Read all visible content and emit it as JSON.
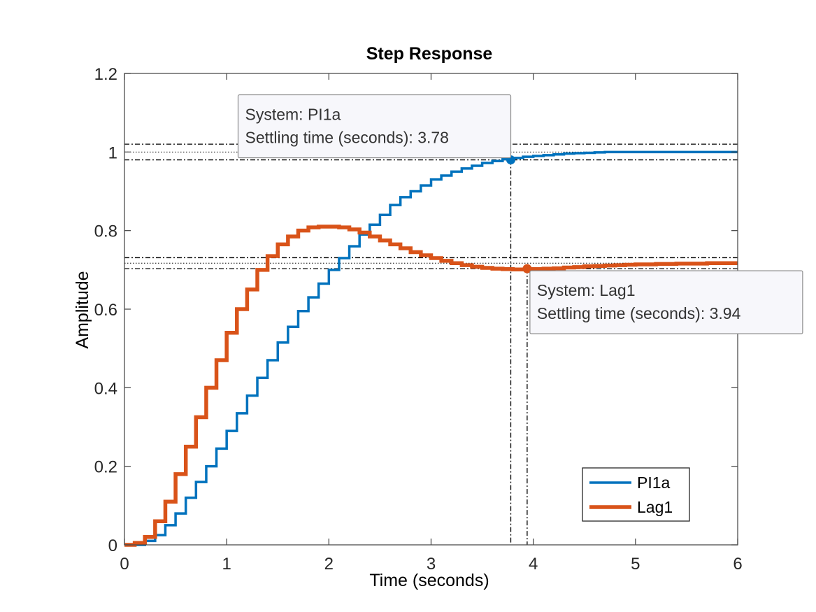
{
  "chart_data": {
    "type": "line",
    "title": "Step Response",
    "xlabel": "Time (seconds)",
    "ylabel": "Amplitude",
    "xlim": [
      0,
      6
    ],
    "ylim": [
      0,
      1.2
    ],
    "xticks": [
      0,
      1,
      2,
      3,
      4,
      5,
      6
    ],
    "xtick_labels": [
      "0",
      "1",
      "2",
      "3",
      "4",
      "5",
      "6"
    ],
    "yticks": [
      0,
      0.2,
      0.4,
      0.6,
      0.8,
      1.0,
      1.2
    ],
    "ytick_labels": [
      "0",
      "0.2",
      "0.4",
      "0.6",
      "0.8",
      "1",
      "1.2"
    ],
    "grid": false,
    "legend_position": "bottom-right",
    "series": [
      {
        "name": "PI1a",
        "color": "#0072BD",
        "style": "stairs",
        "x": [
          0.0,
          0.1,
          0.2,
          0.3,
          0.4,
          0.5,
          0.6,
          0.7,
          0.8,
          0.9,
          1.0,
          1.1,
          1.2,
          1.3,
          1.4,
          1.5,
          1.6,
          1.7,
          1.8,
          1.9,
          2.0,
          2.1,
          2.2,
          2.3,
          2.4,
          2.5,
          2.6,
          2.7,
          2.8,
          2.9,
          3.0,
          3.1,
          3.2,
          3.3,
          3.4,
          3.5,
          3.6,
          3.7,
          3.8,
          3.9,
          4.0,
          4.1,
          4.2,
          4.3,
          4.4,
          4.5,
          4.6,
          4.7,
          4.8,
          4.9,
          5.0,
          5.1,
          5.2,
          5.3,
          5.4,
          5.5,
          5.6,
          5.7,
          5.8,
          5.9,
          6.0
        ],
        "y": [
          0.0,
          0.0,
          0.01,
          0.025,
          0.05,
          0.08,
          0.12,
          0.16,
          0.2,
          0.245,
          0.29,
          0.335,
          0.38,
          0.425,
          0.47,
          0.515,
          0.555,
          0.595,
          0.63,
          0.665,
          0.7,
          0.73,
          0.76,
          0.79,
          0.815,
          0.84,
          0.865,
          0.885,
          0.9,
          0.915,
          0.93,
          0.94,
          0.95,
          0.958,
          0.965,
          0.972,
          0.977,
          0.982,
          0.985,
          0.988,
          0.99,
          0.992,
          0.994,
          0.996,
          0.997,
          0.998,
          0.999,
          1.0,
          1.0,
          1.0,
          1.0,
          1.0,
          1.0,
          1.0,
          1.0,
          1.0,
          1.0,
          1.0,
          1.0,
          1.0,
          1.0
        ]
      },
      {
        "name": "Lag1",
        "color": "#D95319",
        "style": "stairs",
        "x": [
          0.0,
          0.1,
          0.2,
          0.3,
          0.4,
          0.5,
          0.6,
          0.7,
          0.8,
          0.9,
          1.0,
          1.1,
          1.2,
          1.3,
          1.4,
          1.5,
          1.6,
          1.7,
          1.8,
          1.9,
          2.0,
          2.1,
          2.2,
          2.3,
          2.4,
          2.5,
          2.6,
          2.7,
          2.8,
          2.9,
          3.0,
          3.1,
          3.2,
          3.3,
          3.4,
          3.5,
          3.6,
          3.7,
          3.8,
          3.9,
          4.0,
          4.1,
          4.2,
          4.3,
          4.4,
          4.5,
          4.6,
          4.7,
          4.8,
          4.9,
          5.0,
          5.1,
          5.2,
          5.3,
          5.4,
          5.5,
          5.6,
          5.7,
          5.8,
          5.9,
          6.0
        ],
        "y": [
          0.0,
          0.005,
          0.02,
          0.06,
          0.11,
          0.18,
          0.25,
          0.325,
          0.4,
          0.47,
          0.54,
          0.6,
          0.65,
          0.7,
          0.735,
          0.765,
          0.785,
          0.8,
          0.808,
          0.81,
          0.81,
          0.808,
          0.803,
          0.795,
          0.785,
          0.775,
          0.765,
          0.755,
          0.745,
          0.737,
          0.73,
          0.723,
          0.717,
          0.712,
          0.708,
          0.705,
          0.703,
          0.702,
          0.701,
          0.701,
          0.702,
          0.703,
          0.704,
          0.706,
          0.707,
          0.709,
          0.71,
          0.711,
          0.712,
          0.713,
          0.714,
          0.714,
          0.715,
          0.715,
          0.716,
          0.716,
          0.716,
          0.717,
          0.717,
          0.717,
          0.717
        ]
      }
    ],
    "settling_bands": [
      {
        "series": "PI1a",
        "final_value": 1.0,
        "upper": 1.02,
        "lower": 0.98
      },
      {
        "series": "Lag1",
        "final_value": 0.717,
        "upper": 0.731,
        "lower": 0.703
      }
    ],
    "datatips": [
      {
        "series": "PI1a",
        "x": 3.78,
        "y": 0.98,
        "lines": [
          "System: PI1a",
          "Settling time (seconds): 3.78"
        ],
        "placement": "above-left"
      },
      {
        "series": "Lag1",
        "x": 3.94,
        "y": 0.703,
        "lines": [
          "System: Lag1",
          "Settling time (seconds): 3.94"
        ],
        "placement": "below-right"
      }
    ],
    "colors": {
      "axes": "#262626",
      "box": "#4d4d4d",
      "datatip_fill": "#f7f7fb",
      "datatip_border": "#8c8c8c"
    }
  }
}
